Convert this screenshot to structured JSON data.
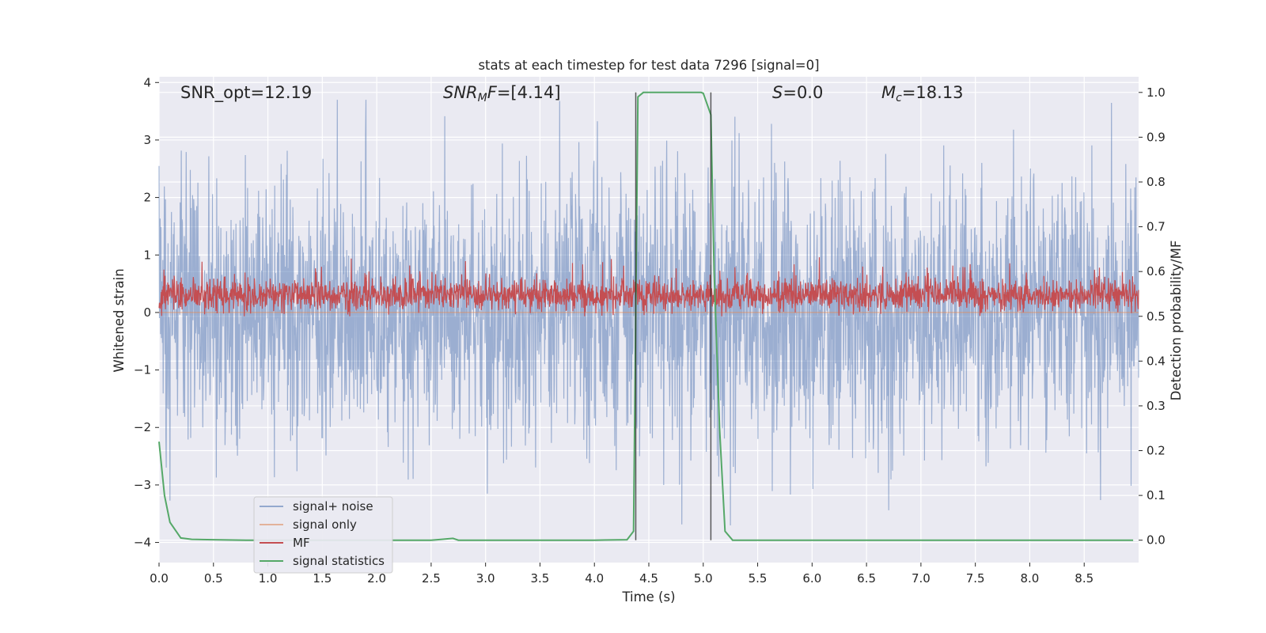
{
  "chart_data": {
    "type": "line",
    "title": "stats at each timestep for test data 7296 [signal=0]",
    "xlabel": "Time (s)",
    "ylabel": "Whitened strain",
    "y2label": "Detection probability/MF",
    "xlim": [
      0.0,
      9.0
    ],
    "ylim": [
      -4.35,
      4.1
    ],
    "y2lim": [
      -0.05,
      1.035
    ],
    "xticks": [
      "0.0",
      "0.5",
      "1.0",
      "1.5",
      "2.0",
      "2.5",
      "3.0",
      "3.5",
      "4.0",
      "4.5",
      "5.0",
      "5.5",
      "6.0",
      "6.5",
      "7.0",
      "7.5",
      "8.0",
      "8.5"
    ],
    "yticks": [
      "4",
      "3",
      "2",
      "1",
      "0",
      "−1",
      "−2",
      "−3",
      "−4"
    ],
    "y2ticks": [
      "1.0",
      "0.9",
      "0.8",
      "0.7",
      "0.6",
      "0.5",
      "0.4",
      "0.3",
      "0.2",
      "0.1",
      "0.0"
    ],
    "grid": true,
    "legend_position": "lower-left",
    "annotations": {
      "snr_opt": "SNR_opt=12.19",
      "snr_mf_base": "SNR",
      "snr_mf_sub": "M",
      "snr_mf_rest": "F=[4.14]",
      "s_var": "S",
      "s_rest": "=0.0",
      "mc_var": "M",
      "mc_sub": "c",
      "mc_rest": "=18.13"
    },
    "vlines": [
      4.38,
      5.07
    ],
    "series": [
      {
        "name": "signal+ noise",
        "color": "#4c72b0",
        "description_range": [
          -3.8,
          3.7
        ]
      },
      {
        "name": "signal only",
        "color": "#dd8452",
        "x": [
          0.0,
          9.0
        ],
        "y": [
          0.0,
          0.0
        ]
      },
      {
        "name": "MF",
        "color": "#c44e52",
        "description_range": [
          0.5,
          0.64
        ]
      },
      {
        "name": "signal statistics",
        "color": "#55a868",
        "x": [
          0.0,
          0.05,
          0.1,
          0.2,
          0.3,
          0.5,
          0.8,
          1.0,
          1.5,
          2.0,
          2.5,
          2.6,
          2.7,
          2.75,
          3.0,
          3.5,
          4.0,
          4.3,
          4.36,
          4.4,
          4.45,
          4.6,
          4.8,
          4.98,
          5.0,
          5.07,
          5.1,
          5.15,
          5.2,
          5.27,
          5.5,
          6.0,
          7.0,
          8.0,
          8.95
        ],
        "y": [
          0.22,
          0.1,
          0.04,
          0.005,
          0.002,
          0.001,
          0.0,
          0.0,
          0.0,
          0.0,
          0.0,
          0.002,
          0.004,
          0.0,
          0.0,
          0.0,
          0.0,
          0.001,
          0.02,
          0.99,
          1.0,
          1.0,
          1.0,
          1.0,
          0.998,
          0.95,
          0.6,
          0.25,
          0.02,
          0.0,
          0.0,
          0.0,
          0.0,
          0.0,
          0.0
        ]
      }
    ]
  }
}
